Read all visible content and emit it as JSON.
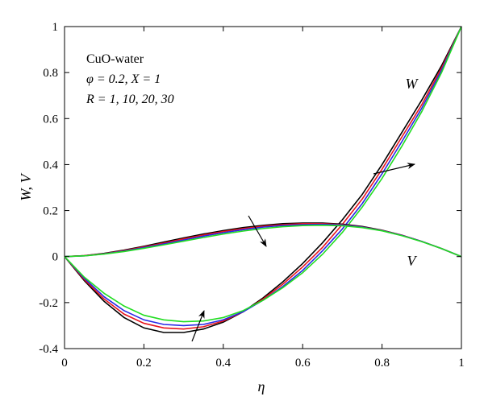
{
  "chart_data": {
    "type": "line",
    "xlabel": "η",
    "ylabel": "W, V",
    "xlim": [
      0,
      1
    ],
    "ylim": [
      -0.4,
      1
    ],
    "grid": false,
    "x_ticks": [
      "0",
      "0.2",
      "0.4",
      "0.6",
      "0.8",
      "1"
    ],
    "y_ticks": [
      "-0.4",
      "-0.2",
      "0",
      "0.2",
      "0.4",
      "0.6",
      "0.8",
      "1"
    ],
    "annotations": {
      "fluid": "CuO-water",
      "params": "φ = 0.2, X = 1",
      "r_values": "R = 1, 10, 20, 30",
      "w_curve_label": "W",
      "v_curve_label": "V"
    },
    "colors": [
      "#000000",
      "#e8141c",
      "#2828e6",
      "#22dd22"
    ],
    "x": [
      0,
      0.05,
      0.1,
      0.15,
      0.2,
      0.25,
      0.3,
      0.35,
      0.4,
      0.45,
      0.5,
      0.55,
      0.6,
      0.65,
      0.7,
      0.75,
      0.8,
      0.85,
      0.9,
      0.95,
      1.0
    ],
    "series": [
      {
        "curve": "W",
        "r": 1,
        "values": [
          0,
          -0.105,
          -0.195,
          -0.265,
          -0.31,
          -0.33,
          -0.33,
          -0.315,
          -0.285,
          -0.24,
          -0.18,
          -0.11,
          -0.03,
          0.06,
          0.16,
          0.27,
          0.4,
          0.54,
          0.68,
          0.83,
          1.0
        ]
      },
      {
        "curve": "W",
        "r": 10,
        "values": [
          0,
          -0.1,
          -0.185,
          -0.25,
          -0.29,
          -0.31,
          -0.315,
          -0.305,
          -0.28,
          -0.24,
          -0.185,
          -0.12,
          -0.045,
          0.04,
          0.14,
          0.25,
          0.38,
          0.52,
          0.66,
          0.82,
          1.0
        ]
      },
      {
        "curve": "W",
        "r": 20,
        "values": [
          0,
          -0.095,
          -0.175,
          -0.235,
          -0.275,
          -0.295,
          -0.3,
          -0.295,
          -0.275,
          -0.24,
          -0.19,
          -0.13,
          -0.06,
          0.025,
          0.12,
          0.23,
          0.36,
          0.5,
          0.645,
          0.81,
          1.0
        ]
      },
      {
        "curve": "W",
        "r": 30,
        "values": [
          0,
          -0.09,
          -0.16,
          -0.215,
          -0.255,
          -0.275,
          -0.283,
          -0.28,
          -0.265,
          -0.235,
          -0.19,
          -0.135,
          -0.07,
          0.01,
          0.105,
          0.215,
          0.34,
          0.48,
          0.63,
          0.8,
          1.0
        ]
      },
      {
        "curve": "V",
        "r": 1,
        "values": [
          0,
          0.004,
          0.014,
          0.028,
          0.045,
          0.063,
          0.081,
          0.098,
          0.113,
          0.126,
          0.136,
          0.143,
          0.146,
          0.146,
          0.141,
          0.131,
          0.115,
          0.093,
          0.066,
          0.035,
          0
        ]
      },
      {
        "curve": "V",
        "r": 10,
        "values": [
          0,
          0.004,
          0.013,
          0.026,
          0.042,
          0.059,
          0.077,
          0.094,
          0.109,
          0.122,
          0.132,
          0.139,
          0.143,
          0.143,
          0.139,
          0.129,
          0.114,
          0.093,
          0.066,
          0.035,
          0
        ]
      },
      {
        "curve": "V",
        "r": 20,
        "values": [
          0,
          0.003,
          0.012,
          0.024,
          0.039,
          0.055,
          0.072,
          0.089,
          0.104,
          0.117,
          0.128,
          0.135,
          0.139,
          0.14,
          0.137,
          0.128,
          0.113,
          0.092,
          0.066,
          0.035,
          0
        ]
      },
      {
        "curve": "V",
        "r": 30,
        "values": [
          0,
          0.003,
          0.011,
          0.022,
          0.036,
          0.051,
          0.067,
          0.083,
          0.098,
          0.111,
          0.122,
          0.13,
          0.135,
          0.136,
          0.134,
          0.126,
          0.112,
          0.091,
          0.065,
          0.035,
          0
        ]
      }
    ]
  }
}
